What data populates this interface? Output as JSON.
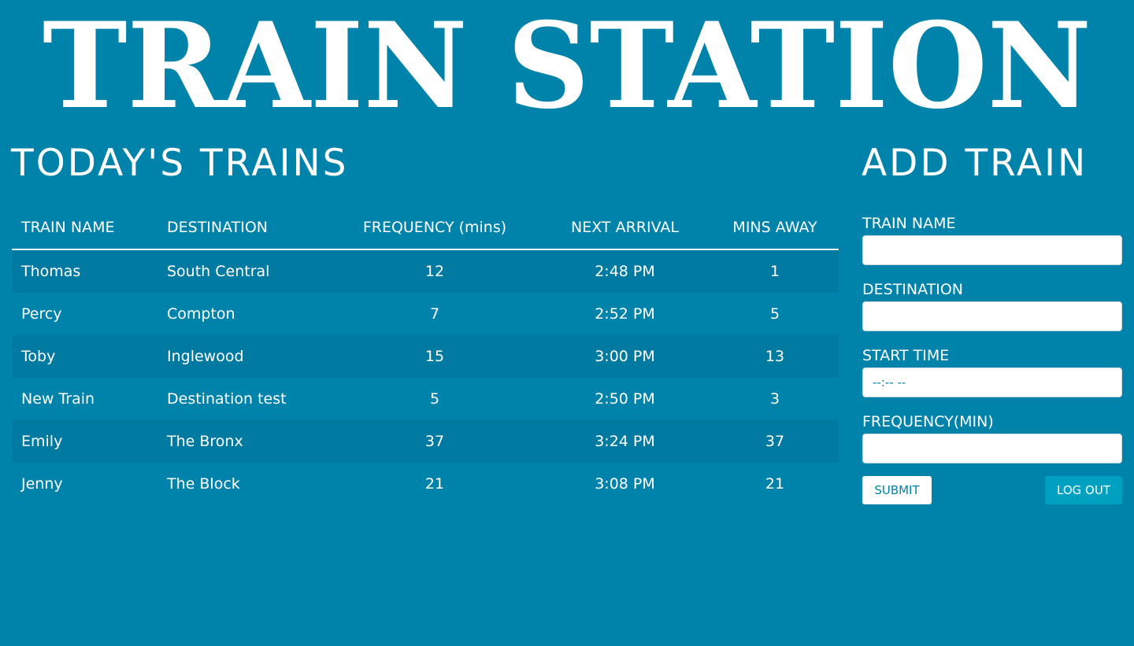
{
  "banner": {
    "title": "TRAIN STATION"
  },
  "schedule": {
    "title": "TODAY'S TRAINS",
    "columns": [
      "TRAIN NAME",
      "DESTINATION",
      "FREQUENCY (mins)",
      "NEXT ARRIVAL",
      "MINS AWAY"
    ],
    "rows": [
      [
        "Thomas",
        "South Central",
        "12",
        "2:48 PM",
        "1"
      ],
      [
        "Percy",
        "Compton",
        "7",
        "2:52 PM",
        "5"
      ],
      [
        "Toby",
        "Inglewood",
        "15",
        "3:00 PM",
        "13"
      ],
      [
        "New Train",
        "Destination test",
        "5",
        "2:50 PM",
        "3"
      ],
      [
        "Emily",
        "The Bronx",
        "37",
        "3:24 PM",
        "37"
      ],
      [
        "Jenny",
        "The Block",
        "21",
        "3:08 PM",
        "21"
      ]
    ]
  },
  "form": {
    "title": "ADD TRAIN",
    "train_name_label": "TRAIN NAME",
    "train_name_value": "",
    "destination_label": "DESTINATION",
    "destination_value": "",
    "start_time_label": "START TIME",
    "start_time_placeholder": "--:-- --",
    "frequency_label": "FREQUENCY(MIN)",
    "frequency_value": "",
    "submit_label": "SUBMIT",
    "logout_label": "LOG OUT"
  },
  "colors": {
    "background": "#0083ab",
    "row_stripe": "#007aa0",
    "logout_button": "#00a0c0",
    "text": "#ffffff"
  }
}
